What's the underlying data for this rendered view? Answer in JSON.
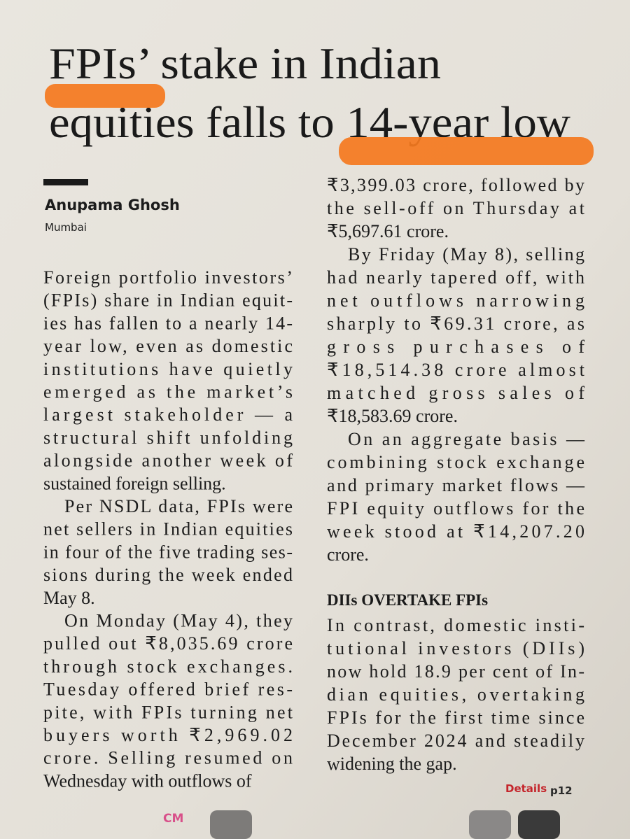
{
  "headline": {
    "lines": [
      "FPIs’ stake in Indian",
      "equities falls to 14-year low"
    ]
  },
  "byline": {
    "author": "Anupama Ghosh",
    "location": "Mumbai"
  },
  "columns": [
    {
      "blocks": [
        {
          "lines": [
            "Foreign portfolio investors’",
            "(FPIs) share in Indian equit-",
            "ies has fallen to a nearly 14-",
            "year low, even as domestic",
            "institutions have quietly",
            "emerged as the market’s",
            "largest stakeholder — a",
            "structural shift unfolding",
            "alongside another week of",
            "sustained foreign selling."
          ]
        },
        {
          "lines": [
            "Per NSDL data, FPIs were",
            "net sellers in Indian equities",
            "in four of the five trading ses-",
            "sions during the week ended",
            "May 8."
          ]
        },
        {
          "lines": [
            "On Monday (May 4), they",
            "pulled out ₹8,035.69 crore",
            "through stock exchanges.",
            "Tuesday offered brief res-",
            "pite, with FPIs turning net",
            "buyers worth ₹2,969.02",
            "crore. Selling resumed on",
            "Wednesday with outflows of"
          ]
        }
      ]
    },
    {
      "blocks": [
        {
          "lines": [
            "₹3,399.03 crore, followed by",
            "the sell-off on Thursday at",
            "₹5,697.61 crore."
          ]
        },
        {
          "lines": [
            "By Friday (May 8), selling",
            "had nearly tapered off, with",
            "net outflows narrowing",
            "sharply to ₹69.31 crore, as",
            "gross purchases of",
            "₹18,514.38 crore almost",
            "matched gross sales of",
            "₹18,583.69 crore."
          ]
        },
        {
          "lines": [
            "On an aggregate basis —",
            "combining stock exchange",
            "and primary market flows —",
            "FPI equity outflows for the",
            "week stood at ₹14,207.20",
            "crore."
          ]
        },
        {
          "subhead": "DIIs OVERTAKE FPIs"
        },
        {
          "lines": [
            "In contrast, domestic insti-",
            "tutional investors (DIIs)",
            "now hold 18.9 per cent of In-",
            "dian equities, overtaking",
            "FPIs for the first time since",
            "December 2024 and steadily",
            "widening the gap."
          ]
        }
      ]
    }
  ],
  "footer": {
    "label": "Details",
    "page": "p12"
  },
  "print_mark": "CM"
}
